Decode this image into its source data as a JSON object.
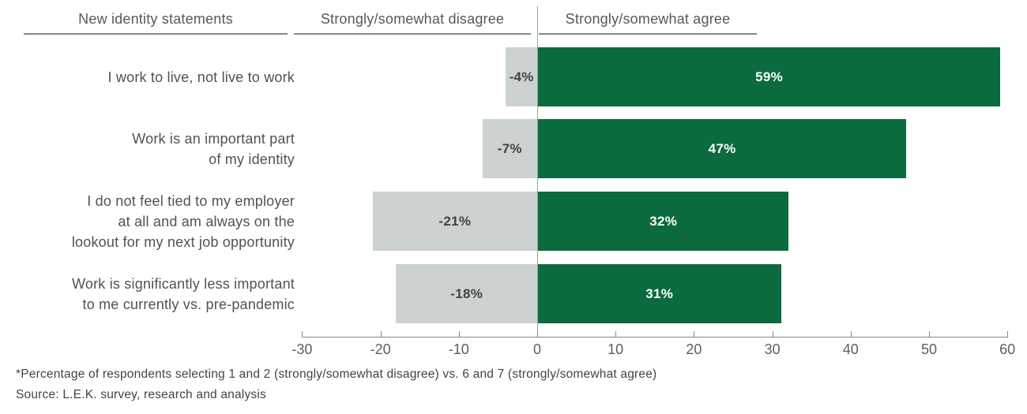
{
  "header": {
    "col_identity": "New identity statements",
    "col_disagree": "Strongly/somewhat disagree",
    "col_agree": "Strongly/somewhat agree"
  },
  "chart_data": {
    "type": "bar",
    "orientation": "horizontal-diverging",
    "categories": [
      [
        "I work to live, not live to work"
      ],
      [
        "Work is an important part",
        "of my identity"
      ],
      [
        "I do not feel tied to my employer",
        "at all and am always on the",
        "lookout for my next job opportunity"
      ],
      [
        "Work is significantly less important",
        "to me currently vs. pre-pandemic"
      ]
    ],
    "series": [
      {
        "name": "Strongly/somewhat disagree",
        "values": [
          -4,
          -7,
          -21,
          -18
        ],
        "color": "#ccd2d0"
      },
      {
        "name": "Strongly/somewhat agree",
        "values": [
          59,
          47,
          32,
          31
        ],
        "color": "#0b6b3e"
      }
    ],
    "value_labels": {
      "disagree": [
        "-4%",
        "-7%",
        "-21%",
        "-18%"
      ],
      "agree": [
        "59%",
        "47%",
        "32%",
        "31%"
      ]
    },
    "xticks": [
      -30,
      -20,
      -10,
      0,
      10,
      20,
      30,
      40,
      50,
      60
    ],
    "xlim": [
      -30,
      60
    ],
    "grid": false,
    "unit": "%"
  },
  "footnotes": {
    "line1": "*Percentage of respondents selecting 1 and 2 (strongly/somewhat disagree) vs. 6 and 7 (strongly/somewhat agree)",
    "line2": "Source: L.E.K. survey, research and analysis"
  },
  "colors": {
    "agree_green": "#0b6b3e",
    "disagree_gray": "#ccd2d0",
    "text_dark": "#4d5356",
    "axis_gray": "#85898b"
  }
}
